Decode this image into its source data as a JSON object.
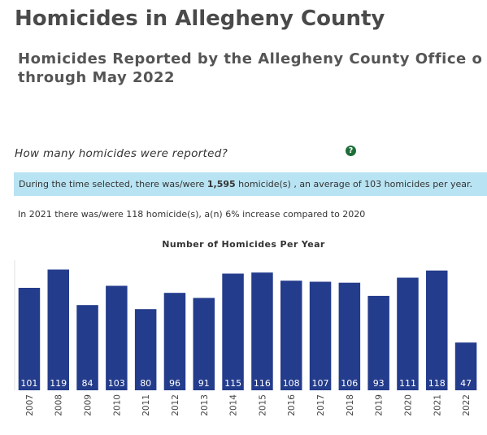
{
  "page": {
    "title": "Homicides in Allegheny County",
    "subtitle": "Homicides Reported by the Allegheny County Office o through May 2022"
  },
  "question": {
    "text": "How many homicides were reported?",
    "help_icon": "help-icon"
  },
  "summary": {
    "prefix": "During the time selected, there was/were ",
    "total": "1,595",
    "suffix": " homicide(s) , an average of 103 homicides per year."
  },
  "comparison": {
    "text": "In 2021 there was/were 118 homicide(s), a(n) 6% increase compared to 2020"
  },
  "colors": {
    "bar": "#243c8c",
    "summary_bg": "#b8e3f2",
    "help_icon": "#1e6e3a"
  },
  "chart_data": {
    "type": "bar",
    "title": "Number of Homicides Per Year",
    "xlabel": "",
    "ylabel": "",
    "categories": [
      "2007",
      "2008",
      "2009",
      "2010",
      "2011",
      "2012",
      "2013",
      "2014",
      "2015",
      "2016",
      "2017",
      "2018",
      "2019",
      "2020",
      "2021",
      "2022"
    ],
    "values": [
      101,
      119,
      84,
      103,
      80,
      96,
      91,
      115,
      116,
      108,
      107,
      106,
      93,
      111,
      118,
      47
    ],
    "ylim": [
      0,
      125
    ],
    "grid": false,
    "data_labels": "inside-bottom",
    "tick_label_rotation": "vertical"
  }
}
